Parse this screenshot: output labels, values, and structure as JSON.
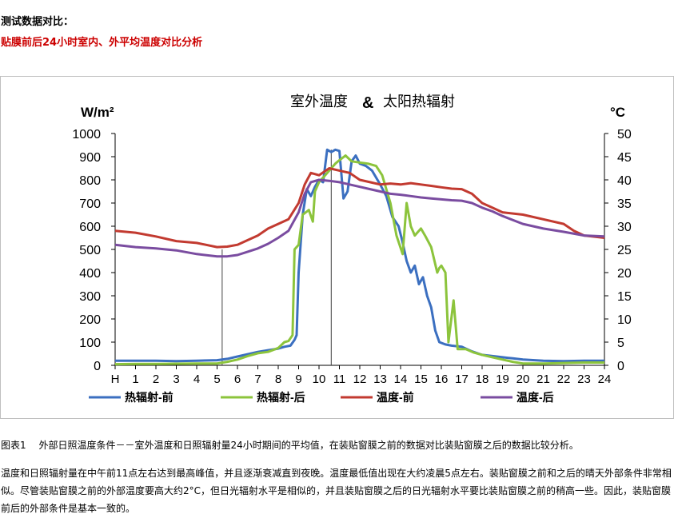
{
  "heading": "测试数据对比：",
  "subheading": "贴膜前后24小时室内、外平均温度对比分析",
  "caption": "图表1　 外部日照温度条件－－室外温度和日照辐射量24小时期间的平均值，在装贴窗膜之前的数据对比装贴窗膜之后的数据比较分析。",
  "paragraph": "温度和日照辐射量在中午前11点左右达到最高峰值，并且逐渐衰减直到夜晚。温度最低值出现在大约凌晨5点左右。装贴窗膜之前和之后的晴天外部条件非常相似。尽管装贴窗膜之前的外部温度要高大约2°C，但日光辐射水平是相似的，并且装贴窗膜之后的日光辐射水平要比装贴窗膜之前的稍高一些。因此，装贴窗膜前后的外部条件是基本一致的。",
  "chart_data": {
    "type": "line",
    "title_main": "室外温度",
    "title_amp": "&",
    "title_rest": "太阳热辐射",
    "ylabel_left": "W/m²",
    "ylabel_right": "°C",
    "ylim_left": [
      0,
      1000
    ],
    "ylim_right": [
      0,
      50
    ],
    "yticks_left": [
      "0",
      "100",
      "200",
      "300",
      "400",
      "500",
      "600",
      "700",
      "800",
      "900",
      "1000"
    ],
    "yticks_right": [
      "0",
      "5",
      "10",
      "15",
      "20",
      "25",
      "30",
      "35",
      "40",
      "45",
      "50"
    ],
    "xlim": [
      0,
      24
    ],
    "xticks": [
      "H",
      "1",
      "2",
      "3",
      "4",
      "5",
      "6",
      "7",
      "8",
      "9",
      "10",
      "11",
      "12",
      "13",
      "14",
      "15",
      "16",
      "17",
      "18",
      "19",
      "20",
      "21",
      "22",
      "23",
      "24"
    ],
    "vertical_markers": [
      5.25,
      10.6
    ],
    "legend_position": "bottom",
    "colors": {
      "rad_before": "#3b6fc0",
      "rad_after": "#8cc43c",
      "temp_before": "#c23a30",
      "temp_after": "#7a4ca0",
      "axis": "#000000"
    },
    "series": [
      {
        "name": "热辐射-前",
        "axis": "left",
        "color_key": "rad_before",
        "points": [
          [
            0,
            20
          ],
          [
            1,
            20
          ],
          [
            2,
            20
          ],
          [
            3,
            18
          ],
          [
            4,
            20
          ],
          [
            5,
            22
          ],
          [
            5.5,
            28
          ],
          [
            6,
            38
          ],
          [
            6.5,
            48
          ],
          [
            7,
            58
          ],
          [
            7.5,
            65
          ],
          [
            8,
            72
          ],
          [
            8.3,
            80
          ],
          [
            8.6,
            85
          ],
          [
            8.8,
            110
          ],
          [
            8.9,
            130
          ],
          [
            9,
            400
          ],
          [
            9.2,
            650
          ],
          [
            9.4,
            760
          ],
          [
            9.6,
            730
          ],
          [
            9.8,
            770
          ],
          [
            10,
            800
          ],
          [
            10.2,
            790
          ],
          [
            10.4,
            930
          ],
          [
            10.6,
            920
          ],
          [
            10.8,
            930
          ],
          [
            11,
            925
          ],
          [
            11.2,
            720
          ],
          [
            11.4,
            750
          ],
          [
            11.6,
            880
          ],
          [
            11.8,
            905
          ],
          [
            12,
            870
          ],
          [
            12.3,
            860
          ],
          [
            12.6,
            840
          ],
          [
            13,
            780
          ],
          [
            13.3,
            730
          ],
          [
            13.6,
            640
          ],
          [
            13.9,
            600
          ],
          [
            14.1,
            530
          ],
          [
            14.3,
            450
          ],
          [
            14.5,
            400
          ],
          [
            14.7,
            430
          ],
          [
            14.9,
            350
          ],
          [
            15.1,
            380
          ],
          [
            15.3,
            300
          ],
          [
            15.5,
            250
          ],
          [
            15.7,
            150
          ],
          [
            15.9,
            100
          ],
          [
            16.2,
            90
          ],
          [
            16.5,
            85
          ],
          [
            17,
            80
          ],
          [
            17.5,
            60
          ],
          [
            18,
            45
          ],
          [
            18.5,
            40
          ],
          [
            19,
            35
          ],
          [
            19.5,
            30
          ],
          [
            20,
            25
          ],
          [
            21,
            20
          ],
          [
            22,
            18
          ],
          [
            23,
            20
          ],
          [
            24,
            20
          ]
        ]
      },
      {
        "name": "热辐射-后",
        "axis": "left",
        "color_key": "rad_after",
        "points": [
          [
            0,
            5
          ],
          [
            1,
            6
          ],
          [
            2,
            6
          ],
          [
            3,
            7
          ],
          [
            4,
            8
          ],
          [
            5,
            8
          ],
          [
            5.5,
            15
          ],
          [
            6,
            25
          ],
          [
            6.5,
            40
          ],
          [
            7,
            52
          ],
          [
            7.5,
            58
          ],
          [
            8,
            75
          ],
          [
            8.3,
            100
          ],
          [
            8.5,
            105
          ],
          [
            8.7,
            130
          ],
          [
            8.8,
            500
          ],
          [
            9,
            520
          ],
          [
            9.2,
            650
          ],
          [
            9.5,
            670
          ],
          [
            9.7,
            620
          ],
          [
            9.8,
            750
          ],
          [
            10,
            790
          ],
          [
            10.3,
            820
          ],
          [
            10.6,
            850
          ],
          [
            10.8,
            870
          ],
          [
            11,
            885
          ],
          [
            11.3,
            905
          ],
          [
            11.6,
            880
          ],
          [
            12,
            875
          ],
          [
            12.4,
            870
          ],
          [
            12.8,
            860
          ],
          [
            13.1,
            820
          ],
          [
            13.5,
            700
          ],
          [
            13.8,
            560
          ],
          [
            14.1,
            480
          ],
          [
            14.3,
            700
          ],
          [
            14.5,
            600
          ],
          [
            14.7,
            560
          ],
          [
            15,
            590
          ],
          [
            15.2,
            560
          ],
          [
            15.5,
            510
          ],
          [
            15.8,
            400
          ],
          [
            15.9,
            420
          ],
          [
            16,
            430
          ],
          [
            16.2,
            400
          ],
          [
            16.35,
            100
          ],
          [
            16.6,
            280
          ],
          [
            16.8,
            70
          ],
          [
            17.2,
            70
          ],
          [
            17.6,
            55
          ],
          [
            18,
            45
          ],
          [
            18.5,
            35
          ],
          [
            19,
            25
          ],
          [
            19.5,
            15
          ],
          [
            20,
            8
          ],
          [
            21,
            8
          ],
          [
            22,
            10
          ],
          [
            23,
            12
          ],
          [
            24,
            12
          ]
        ]
      },
      {
        "name": "温度-前",
        "axis": "right",
        "color_key": "temp_before",
        "points": [
          [
            0,
            29
          ],
          [
            1,
            28.6
          ],
          [
            2,
            27.8
          ],
          [
            3,
            26.8
          ],
          [
            4,
            26.4
          ],
          [
            5,
            25.5
          ],
          [
            5.5,
            25.6
          ],
          [
            6,
            26
          ],
          [
            6.5,
            27
          ],
          [
            7,
            28
          ],
          [
            7.5,
            29.5
          ],
          [
            8,
            30.5
          ],
          [
            8.5,
            31.5
          ],
          [
            9,
            35
          ],
          [
            9.3,
            39
          ],
          [
            9.6,
            41.5
          ],
          [
            10,
            41
          ],
          [
            10.5,
            42.5
          ],
          [
            11,
            42
          ],
          [
            11.5,
            41.5
          ],
          [
            12,
            40
          ],
          [
            12.5,
            39.5
          ],
          [
            13,
            39
          ],
          [
            13.5,
            39.2
          ],
          [
            14,
            39
          ],
          [
            14.5,
            39.3
          ],
          [
            15,
            39
          ],
          [
            15.5,
            38.7
          ],
          [
            16,
            38.4
          ],
          [
            16.5,
            38.1
          ],
          [
            17,
            38
          ],
          [
            17.5,
            37
          ],
          [
            18,
            35
          ],
          [
            18.5,
            34
          ],
          [
            19,
            33
          ],
          [
            20,
            32.5
          ],
          [
            21,
            31.5
          ],
          [
            22,
            30.5
          ],
          [
            22.5,
            29
          ],
          [
            23,
            28
          ],
          [
            24,
            27.5
          ]
        ]
      },
      {
        "name": "温度-后",
        "axis": "right",
        "color_key": "temp_after",
        "points": [
          [
            0,
            26
          ],
          [
            1,
            25.5
          ],
          [
            2,
            25.2
          ],
          [
            3,
            24.8
          ],
          [
            4,
            24
          ],
          [
            5,
            23.5
          ],
          [
            5.5,
            23.5
          ],
          [
            6,
            23.8
          ],
          [
            6.5,
            24.5
          ],
          [
            7,
            25.2
          ],
          [
            7.5,
            26.2
          ],
          [
            8,
            27.5
          ],
          [
            8.5,
            29
          ],
          [
            9,
            33
          ],
          [
            9.3,
            37
          ],
          [
            9.6,
            39.5
          ],
          [
            10,
            40
          ],
          [
            10.5,
            39.8
          ],
          [
            11,
            39.5
          ],
          [
            11.5,
            39
          ],
          [
            12,
            38.5
          ],
          [
            12.5,
            38
          ],
          [
            13,
            37.5
          ],
          [
            13.5,
            37
          ],
          [
            14,
            36.8
          ],
          [
            14.5,
            36.5
          ],
          [
            15,
            36.2
          ],
          [
            15.5,
            36
          ],
          [
            16,
            35.8
          ],
          [
            16.5,
            35.6
          ],
          [
            17,
            35.5
          ],
          [
            17.5,
            35
          ],
          [
            18,
            34
          ],
          [
            18.5,
            33.2
          ],
          [
            19,
            32.2
          ],
          [
            20,
            30.5
          ],
          [
            21,
            29.5
          ],
          [
            22,
            28.8
          ],
          [
            23,
            28
          ],
          [
            24,
            27.8
          ]
        ]
      }
    ]
  }
}
